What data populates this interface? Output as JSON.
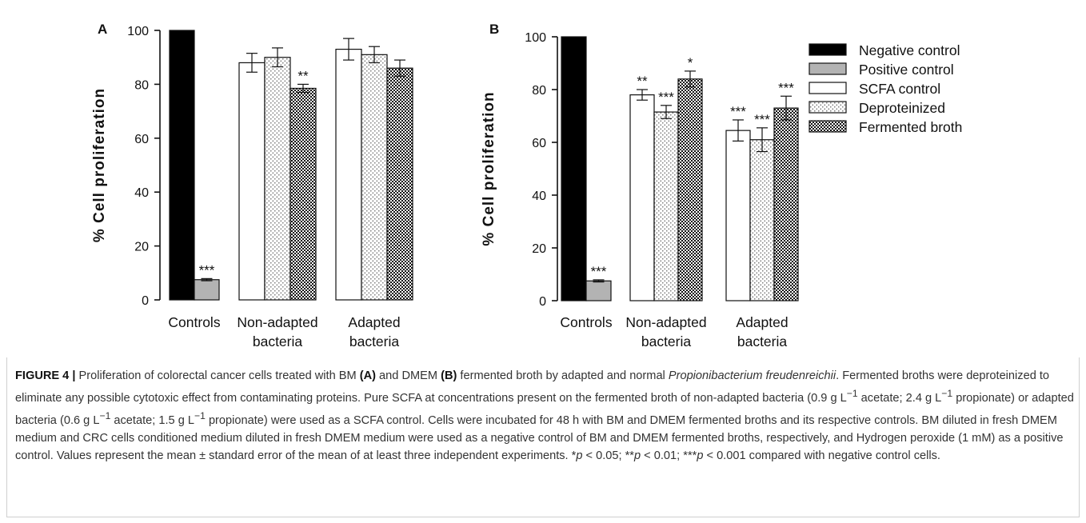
{
  "patterns": {
    "Negative control": "solid-black",
    "Positive control": "solid-gray",
    "SCFA control": "white",
    "Deproteinized": "dots",
    "Fermented broth": "checker"
  },
  "chart_data": [
    {
      "panel": "A",
      "type": "bar",
      "ylabel": "% Cell proliferation",
      "ylim": [
        0,
        100
      ],
      "yticks": [
        "0",
        "20",
        "40",
        "60",
        "80",
        "100"
      ],
      "groups": [
        {
          "label_lines": [
            "Controls"
          ],
          "bars": [
            {
              "series": "Negative control",
              "value": 100,
              "error": 0,
              "sig": ""
            },
            {
              "series": "Positive control",
              "value": 7.5,
              "error": 0.4,
              "sig": "***"
            }
          ]
        },
        {
          "label_lines": [
            "Non-adapted",
            "bacteria"
          ],
          "bars": [
            {
              "series": "SCFA control",
              "value": 88,
              "error": 3.5,
              "sig": ""
            },
            {
              "series": "Deproteinized",
              "value": 90,
              "error": 3.5,
              "sig": ""
            },
            {
              "series": "Fermented broth",
              "value": 78.5,
              "error": 1.5,
              "sig": "**"
            }
          ]
        },
        {
          "label_lines": [
            "Adapted",
            "bacteria"
          ],
          "bars": [
            {
              "series": "SCFA control",
              "value": 93,
              "error": 4,
              "sig": ""
            },
            {
              "series": "Deproteinized",
              "value": 91,
              "error": 3,
              "sig": ""
            },
            {
              "series": "Fermented broth",
              "value": 86,
              "error": 3,
              "sig": ""
            }
          ]
        }
      ]
    },
    {
      "panel": "B",
      "type": "bar",
      "ylabel": "% Cell proliferation",
      "ylim": [
        0,
        100
      ],
      "yticks": [
        "0",
        "20",
        "40",
        "60",
        "80",
        "100"
      ],
      "groups": [
        {
          "label_lines": [
            "Controls"
          ],
          "bars": [
            {
              "series": "Negative control",
              "value": 100,
              "error": 0,
              "sig": ""
            },
            {
              "series": "Positive control",
              "value": 7.5,
              "error": 0.4,
              "sig": "***"
            }
          ]
        },
        {
          "label_lines": [
            "Non-adapted",
            "bacteria"
          ],
          "bars": [
            {
              "series": "SCFA control",
              "value": 78,
              "error": 2,
              "sig": "**"
            },
            {
              "series": "Deproteinized",
              "value": 71.5,
              "error": 2.5,
              "sig": "***"
            },
            {
              "series": "Fermented broth",
              "value": 84,
              "error": 3,
              "sig": "*"
            }
          ]
        },
        {
          "label_lines": [
            "Adapted",
            "bacteria"
          ],
          "bars": [
            {
              "series": "SCFA control",
              "value": 64.5,
              "error": 4,
              "sig": "***"
            },
            {
              "series": "Deproteinized",
              "value": 61,
              "error": 4.5,
              "sig": "***"
            },
            {
              "series": "Fermented broth",
              "value": 73,
              "error": 4.5,
              "sig": "***"
            }
          ]
        }
      ]
    }
  ],
  "legend": [
    {
      "label": "Negative control",
      "series": "Negative control"
    },
    {
      "label": "Positive control",
      "series": "Positive control"
    },
    {
      "label": "SCFA control",
      "series": "SCFA control"
    },
    {
      "label": "Deproteinized",
      "series": "Deproteinized"
    },
    {
      "label": "Fermented broth",
      "series": "Fermented broth"
    }
  ],
  "caption": {
    "fig_label": "FIGURE 4 |",
    "t1": " Proliferation of colorectal cancer cells treated with BM ",
    "a": "(A)",
    "t2": " and DMEM ",
    "b": "(B)",
    "t3": " fermented broth by adapted and normal ",
    "species": "Propionibacterium freudenreichii",
    "t4": ". Fermented broths were deproteinized to eliminate any possible cytotoxic effect from contaminating proteins. Pure SCFA at concentrations present on the fermented broth of non-adapted bacteria (0.9 g L",
    "sup1": "−1",
    "t5": " acetate; 2.4 g L",
    "sup2": "−1",
    "t6": " propionate) or adapted bacteria (0.6 g L",
    "sup3": "−1",
    "t7": " acetate; 1.5 g L",
    "sup4": "−1",
    "t8": " propionate) were used as a SCFA control. Cells were incubated for 48 h with BM and DMEM fermented broths and its respective controls. BM diluted in fresh DMEM medium and CRC cells conditioned medium diluted in fresh DMEM medium were used as a negative control of BM and DMEM fermented broths, respectively, and Hydrogen peroxide (1 mM) as a positive control. Values represent the mean ± standard error of the mean of at least three independent experiments. *",
    "p1": "p",
    "t9": " < 0.05; **",
    "p2": "p",
    "t10": " < 0.01; ***",
    "p3": "p",
    "t11": " < 0.001 compared with negative control cells."
  }
}
